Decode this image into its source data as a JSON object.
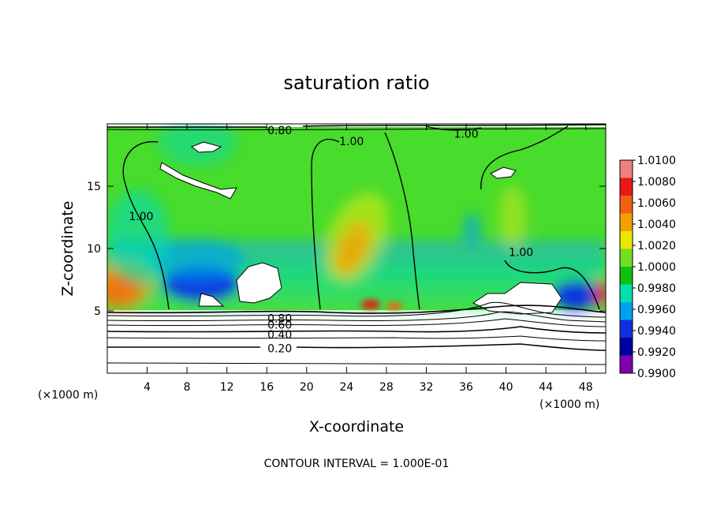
{
  "chart_data": {
    "type": "heatmap",
    "title": "saturation ratio",
    "xlabel": "X-coordinate",
    "ylabel": "Z-coordinate",
    "x_unit_left": "(×1000 m)",
    "x_unit_right": "(×1000 m)",
    "xlim": [
      0,
      50
    ],
    "ylim": [
      0,
      20
    ],
    "xticks": [
      4,
      8,
      12,
      16,
      20,
      24,
      28,
      32,
      36,
      40,
      44,
      48
    ],
    "yticks": [
      5,
      10,
      15
    ],
    "contour_labels": [
      {
        "text": "0.80",
        "x": 17.3,
        "z": 19.5
      },
      {
        "text": "1.00",
        "x": 24.5,
        "z": 18.6
      },
      {
        "text": "1.00",
        "x": 36.0,
        "z": 19.2
      },
      {
        "text": "1.00",
        "x": 3.4,
        "z": 12.6
      },
      {
        "text": "1.00",
        "x": 41.5,
        "z": 9.7
      },
      {
        "text": "0.80",
        "x": 17.3,
        "z": 4.4
      },
      {
        "text": "0.60",
        "x": 17.3,
        "z": 3.9
      },
      {
        "text": "0.40",
        "x": 17.3,
        "z": 3.1
      },
      {
        "text": "0.20",
        "x": 17.3,
        "z": 2.0
      }
    ],
    "colorbar": {
      "levels": [
        "1.0100",
        "1.0080",
        "1.0060",
        "1.0040",
        "1.0020",
        "1.0000",
        "0.9980",
        "0.9960",
        "0.9940",
        "0.9920",
        "0.9900"
      ],
      "colors": [
        "#f08080",
        "#e81818",
        "#f06010",
        "#f0a000",
        "#e8e800",
        "#70e020",
        "#10c010",
        "#00e0b0",
        "#00a0f0",
        "#1030e0",
        "#0000a0",
        "#8000b0"
      ]
    },
    "footer": "CONTOUR INTERVAL = 1.000E-01"
  }
}
